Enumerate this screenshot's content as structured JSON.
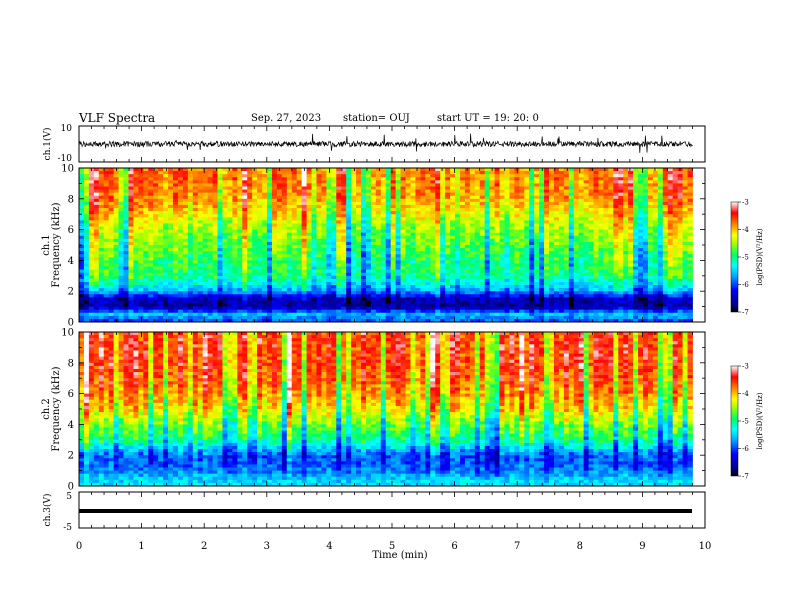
{
  "header": {
    "title": "VLF Spectra",
    "date": "Sep. 27, 2023",
    "station": "station= OUJ",
    "start_ut": "start  UT =   19: 20: 0"
  },
  "chart_data": [
    {
      "type": "line",
      "panel": "channel-1 waveform",
      "ylabel": "ch.1(V)",
      "ylim": [
        -10,
        10
      ],
      "yticks": [
        "10",
        "-10"
      ],
      "xlim": [
        0,
        10
      ],
      "description_values": {
        "baseline": 0,
        "typical_amplitude": 1.5,
        "spike_amplitude": 6
      },
      "color": "#000000"
    },
    {
      "type": "heatmap",
      "panel": "ch.1 spectrogram",
      "ylabel_line1": "ch.1",
      "ylabel_line2": "Frequency (kHz)",
      "ylim": [
        0,
        10
      ],
      "yticks": [
        "0",
        "2",
        "4",
        "6",
        "8",
        "10"
      ],
      "xlim": [
        0,
        9.8
      ],
      "colorbar": {
        "label": "log(PSD)(V²/Hz)",
        "range": [
          -7,
          -3
        ],
        "ticks": [
          "-3",
          "-4",
          "-5",
          "-6",
          "-7"
        ]
      },
      "levels_by_frequency_kHz": [
        {
          "f": 0.0,
          "v": -6.0
        },
        {
          "f": 0.5,
          "v": -5.6
        },
        {
          "f": 1.0,
          "v": -6.6
        },
        {
          "f": 1.5,
          "v": -6.5
        },
        {
          "f": 2.0,
          "v": -5.7
        },
        {
          "f": 2.5,
          "v": -5.3
        },
        {
          "f": 3.0,
          "v": -5.0
        },
        {
          "f": 4.0,
          "v": -4.9
        },
        {
          "f": 5.0,
          "v": -4.7
        },
        {
          "f": 6.0,
          "v": -4.5
        },
        {
          "f": 7.0,
          "v": -4.2
        },
        {
          "f": 8.0,
          "v": -3.9
        },
        {
          "f": 9.0,
          "v": -3.8
        },
        {
          "f": 10.0,
          "v": -3.8
        }
      ]
    },
    {
      "type": "heatmap",
      "panel": "ch.2 spectrogram",
      "ylabel_line1": "ch.2",
      "ylabel_line2": "Frequency (kHz)",
      "ylim": [
        0,
        10
      ],
      "yticks": [
        "0",
        "2",
        "4",
        "6",
        "8",
        "10"
      ],
      "xlim": [
        0,
        9.8
      ],
      "colorbar": {
        "label": "log(PSD)(V²/Hz)",
        "range": [
          -7,
          -3
        ],
        "ticks": [
          "-3",
          "-4",
          "-5",
          "-6",
          "-7"
        ]
      },
      "levels_by_frequency_kHz": [
        {
          "f": 0.0,
          "v": -5.4
        },
        {
          "f": 0.5,
          "v": -5.5
        },
        {
          "f": 1.0,
          "v": -5.8
        },
        {
          "f": 1.5,
          "v": -5.9
        },
        {
          "f": 2.0,
          "v": -5.9
        },
        {
          "f": 2.5,
          "v": -5.4
        },
        {
          "f": 3.0,
          "v": -5.0
        },
        {
          "f": 3.5,
          "v": -4.8
        },
        {
          "f": 4.0,
          "v": -4.6
        },
        {
          "f": 5.0,
          "v": -4.1
        },
        {
          "f": 6.0,
          "v": -3.8
        },
        {
          "f": 7.0,
          "v": -3.6
        },
        {
          "f": 8.0,
          "v": -3.5
        },
        {
          "f": 9.0,
          "v": -3.5
        },
        {
          "f": 10.0,
          "v": -3.5
        }
      ]
    },
    {
      "type": "line",
      "panel": "channel-3 waveform",
      "ylabel": "ch.3(V)",
      "ylim": [
        -5,
        5
      ],
      "yticks": [
        "5",
        "-5"
      ],
      "xlim": [
        0,
        10
      ],
      "description_values": {
        "baseline": 0
      },
      "color": "#000000"
    },
    {
      "type": "axis",
      "xlabel": "Time (min)",
      "xlim": [
        0,
        10
      ],
      "xticks": [
        "0",
        "1",
        "2",
        "3",
        "4",
        "5",
        "6",
        "7",
        "8",
        "9",
        "10"
      ]
    }
  ]
}
